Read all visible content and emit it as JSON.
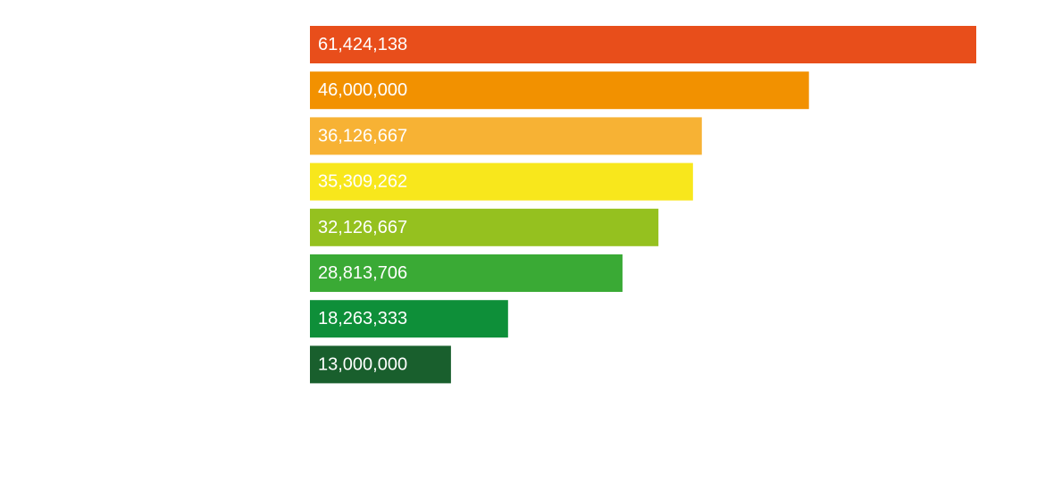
{
  "chart_data": {
    "type": "bar",
    "orientation": "horizontal",
    "categories": [
      "",
      "",
      "",
      "",
      "",
      "",
      "",
      ""
    ],
    "values": [
      61424138,
      46000000,
      36126667,
      35309262,
      32126667,
      28813706,
      18263333,
      13000000
    ],
    "value_labels": [
      "61,424,138",
      "46,000,000",
      "36,126,667",
      "35,309,262",
      "32,126,667",
      "28,813,706",
      "18,263,333",
      "13,000,000"
    ],
    "colors": [
      "#e84e1b",
      "#f29100",
      "#f7b234",
      "#f8e71c",
      "#95c11f",
      "#3aaa35",
      "#0e8f39",
      "#195f2d"
    ],
    "xlim": [
      0,
      61424138
    ],
    "grid": false,
    "title": "",
    "xlabel": "",
    "ylabel": ""
  }
}
